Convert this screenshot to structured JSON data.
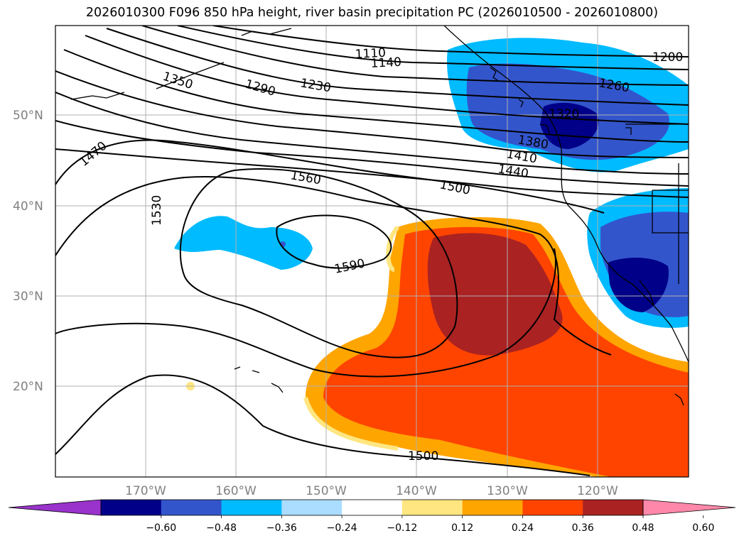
{
  "title": "2026010300 F096 850 hPa height, river basin precipitation PC (2026010500 - 2026010800)",
  "lat_labels": [
    "50°N",
    "40°N",
    "30°N",
    "20°N"
  ],
  "lon_labels": [
    "170°W",
    "160°W",
    "150°W",
    "140°W",
    "130°W",
    "120°W"
  ],
  "contour_labels": [
    "1110",
    "1140",
    "1200",
    "1230",
    "1260",
    "1290",
    "1350",
    "1320",
    "1380",
    "1410",
    "1440",
    "1470",
    "1500",
    "1530",
    "1560",
    "1590",
    "1500"
  ],
  "colorbar": {
    "ticks": [
      "−0.60",
      "−0.48",
      "−0.36",
      "−0.24",
      "−0.12",
      "0.12",
      "0.24",
      "0.36",
      "0.48",
      "0.60"
    ],
    "colors": [
      "#9933cc",
      "#000088",
      "#3355cc",
      "#00bbff",
      "#aaddff",
      "#ffffff",
      "#ffe680",
      "#ffa500",
      "#ff4400",
      "#aa2222",
      "#ff88aa"
    ]
  }
}
